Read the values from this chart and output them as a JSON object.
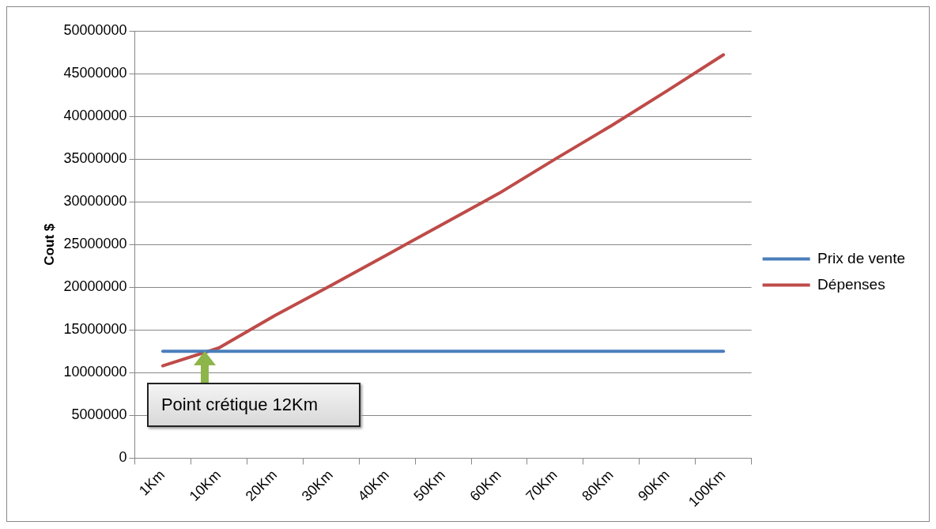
{
  "chart_data": {
    "type": "line",
    "ylabel": "Cout $",
    "categories": [
      "1Km",
      "10Km",
      "20Km",
      "30Km",
      "40Km",
      "50Km",
      "60Km",
      "70Km",
      "80Km",
      "90Km",
      "100Km"
    ],
    "series": [
      {
        "name": "Prix de vente",
        "color": "#4a7ebb",
        "values": [
          12500000,
          12500000,
          12500000,
          12500000,
          12500000,
          12500000,
          12500000,
          12500000,
          12500000,
          12500000,
          12500000
        ]
      },
      {
        "name": "Dépenses",
        "color": "#be4b48",
        "values": [
          10800000,
          12900000,
          16700000,
          20200000,
          23800000,
          27400000,
          31000000,
          35000000,
          38900000,
          43000000,
          47200000
        ]
      }
    ],
    "ylim": [
      0,
      50000000
    ],
    "yticks": [
      0,
      5000000,
      10000000,
      15000000,
      20000000,
      25000000,
      30000000,
      35000000,
      40000000,
      45000000,
      50000000
    ],
    "grid": "y",
    "legend": "right",
    "marker": "none",
    "line_style": "solid",
    "annotations": [
      "Point crétique 12Km"
    ]
  }
}
